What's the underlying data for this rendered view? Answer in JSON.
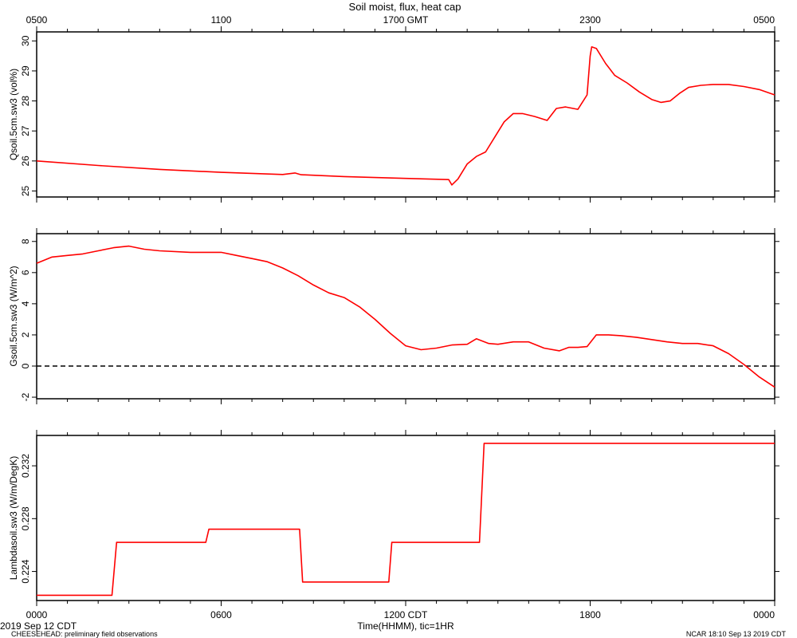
{
  "chart_data": {
    "type": "line",
    "title": "Soil moist, flux, heat cap",
    "top_axis_ticks": [
      "0500",
      "1100",
      "1700 GMT",
      "2300",
      "0500"
    ],
    "bottom_axis_ticks": [
      "0000",
      "0600",
      "1200 CDT",
      "1800",
      "0000"
    ],
    "xlabel": "Time(HHMM), tic=1HR",
    "x_unit": "hours since 2019 Sep 12 0000 CDT",
    "xlim": [
      0,
      24
    ],
    "date_label": "2019 Sep 12 CDT",
    "panels": [
      {
        "ylabel": "Qsoil.5cm.sw3 (vol%)",
        "ylim": [
          24.8,
          30.3
        ],
        "yticks": [
          25,
          26,
          27,
          28,
          29,
          30
        ],
        "ytick_labels": [
          "25",
          "26",
          "27",
          "28",
          "29",
          "30"
        ],
        "color": "#ff0000",
        "x": [
          0,
          2,
          4,
          6,
          8,
          8.4,
          8.6,
          10,
          12,
          13.4,
          13.5,
          13.7,
          14,
          14.3,
          14.6,
          14.9,
          15.2,
          15.5,
          15.8,
          16.2,
          16.6,
          16.9,
          17.2,
          17.6,
          17.9,
          18,
          18.05,
          18.2,
          18.5,
          18.8,
          19.2,
          19.6,
          20,
          20.3,
          20.6,
          20.9,
          21.2,
          21.6,
          22,
          22.5,
          23,
          23.5,
          24
        ],
        "y": [
          26.0,
          25.85,
          25.72,
          25.62,
          25.55,
          25.6,
          25.54,
          25.48,
          25.42,
          25.38,
          25.2,
          25.4,
          25.9,
          26.15,
          26.3,
          26.8,
          27.3,
          27.58,
          27.58,
          27.48,
          27.35,
          27.75,
          27.8,
          27.72,
          28.2,
          29.5,
          29.8,
          29.75,
          29.25,
          28.85,
          28.6,
          28.3,
          28.05,
          27.95,
          28.0,
          28.25,
          28.45,
          28.52,
          28.55,
          28.55,
          28.48,
          28.38,
          28.2
        ]
      },
      {
        "ylabel": "Gsoil.5cm.sw3 (W/m^2)",
        "ylim": [
          -2.1,
          8.5
        ],
        "yticks": [
          -2,
          0,
          2,
          4,
          6,
          8
        ],
        "ytick_labels": [
          "-2",
          "0",
          "2",
          "4",
          "6",
          "8"
        ],
        "reference_line": 0,
        "color": "#ff0000",
        "x": [
          0,
          0.5,
          1,
          1.5,
          2,
          2.5,
          3,
          3.5,
          4,
          5,
          6,
          6.5,
          7,
          7.5,
          8,
          8.5,
          9,
          9.5,
          10,
          10.5,
          11,
          11.5,
          12,
          12.5,
          13,
          13.5,
          14,
          14.3,
          14.7,
          15,
          15.5,
          16,
          16.5,
          17,
          17.3,
          17.6,
          17.9,
          18.2,
          18.6,
          19,
          19.5,
          20,
          20.5,
          21,
          21.5,
          22,
          22.5,
          23,
          23.5,
          24
        ],
        "y": [
          6.6,
          7.0,
          7.1,
          7.2,
          7.4,
          7.6,
          7.7,
          7.5,
          7.4,
          7.3,
          7.3,
          7.1,
          6.9,
          6.7,
          6.3,
          5.8,
          5.2,
          4.7,
          4.4,
          3.8,
          3.0,
          2.1,
          1.3,
          1.05,
          1.15,
          1.35,
          1.4,
          1.75,
          1.45,
          1.4,
          1.55,
          1.55,
          1.15,
          0.98,
          1.2,
          1.2,
          1.25,
          2.0,
          2.0,
          1.95,
          1.85,
          1.7,
          1.55,
          1.45,
          1.45,
          1.3,
          0.8,
          0.1,
          -0.7,
          -1.35
        ]
      },
      {
        "ylabel": "Lambdasoil.sw3 (W/m/DegK)",
        "ylim": [
          0.2218,
          0.2343
        ],
        "yticks": [
          0.224,
          0.228,
          0.232
        ],
        "ytick_labels": [
          "0.224",
          "0.228",
          "0.232"
        ],
        "color": "#ff0000",
        "x": [
          0,
          2.45,
          2.6,
          5.5,
          5.6,
          8.55,
          8.65,
          11.45,
          11.55,
          14.4,
          14.55,
          24
        ],
        "y": [
          0.2222,
          0.2222,
          0.2262,
          0.2262,
          0.2272,
          0.2272,
          0.2232,
          0.2232,
          0.2262,
          0.2262,
          0.2337,
          0.2337
        ]
      }
    ]
  },
  "footer": {
    "left": "CHEESEHEAD: preliminary field observations",
    "right": "NCAR 18:10 Sep 13 2019 CDT"
  }
}
